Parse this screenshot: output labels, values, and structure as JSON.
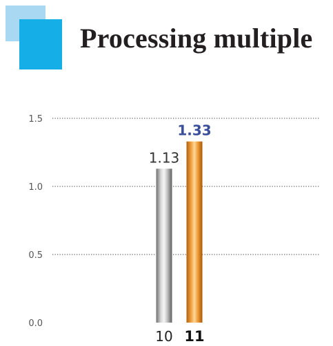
{
  "header": {
    "title": "Processing multiple"
  },
  "colors": {
    "logo_back": "#a9d9f2",
    "logo_front": "#16aee6",
    "bar_gray": "#a0a0a0",
    "bar_orange": "#e8912a",
    "highlight_label": "#3a4f9b"
  },
  "chart_data": {
    "type": "bar",
    "categories": [
      "10",
      "11"
    ],
    "values": [
      1.13,
      1.33
    ],
    "value_labels": [
      "1.13",
      "1.33"
    ],
    "ylim": [
      0,
      1.5
    ],
    "yticks": [
      0.0,
      0.5,
      1.0,
      1.5
    ],
    "ytick_labels": [
      "0.0",
      "0.5",
      "1.0",
      "1.5"
    ],
    "grid": true,
    "grid_style": "dotted",
    "highlight_index": 1,
    "bar_styles": [
      "gray-cylinder",
      "orange-cylinder"
    ]
  }
}
